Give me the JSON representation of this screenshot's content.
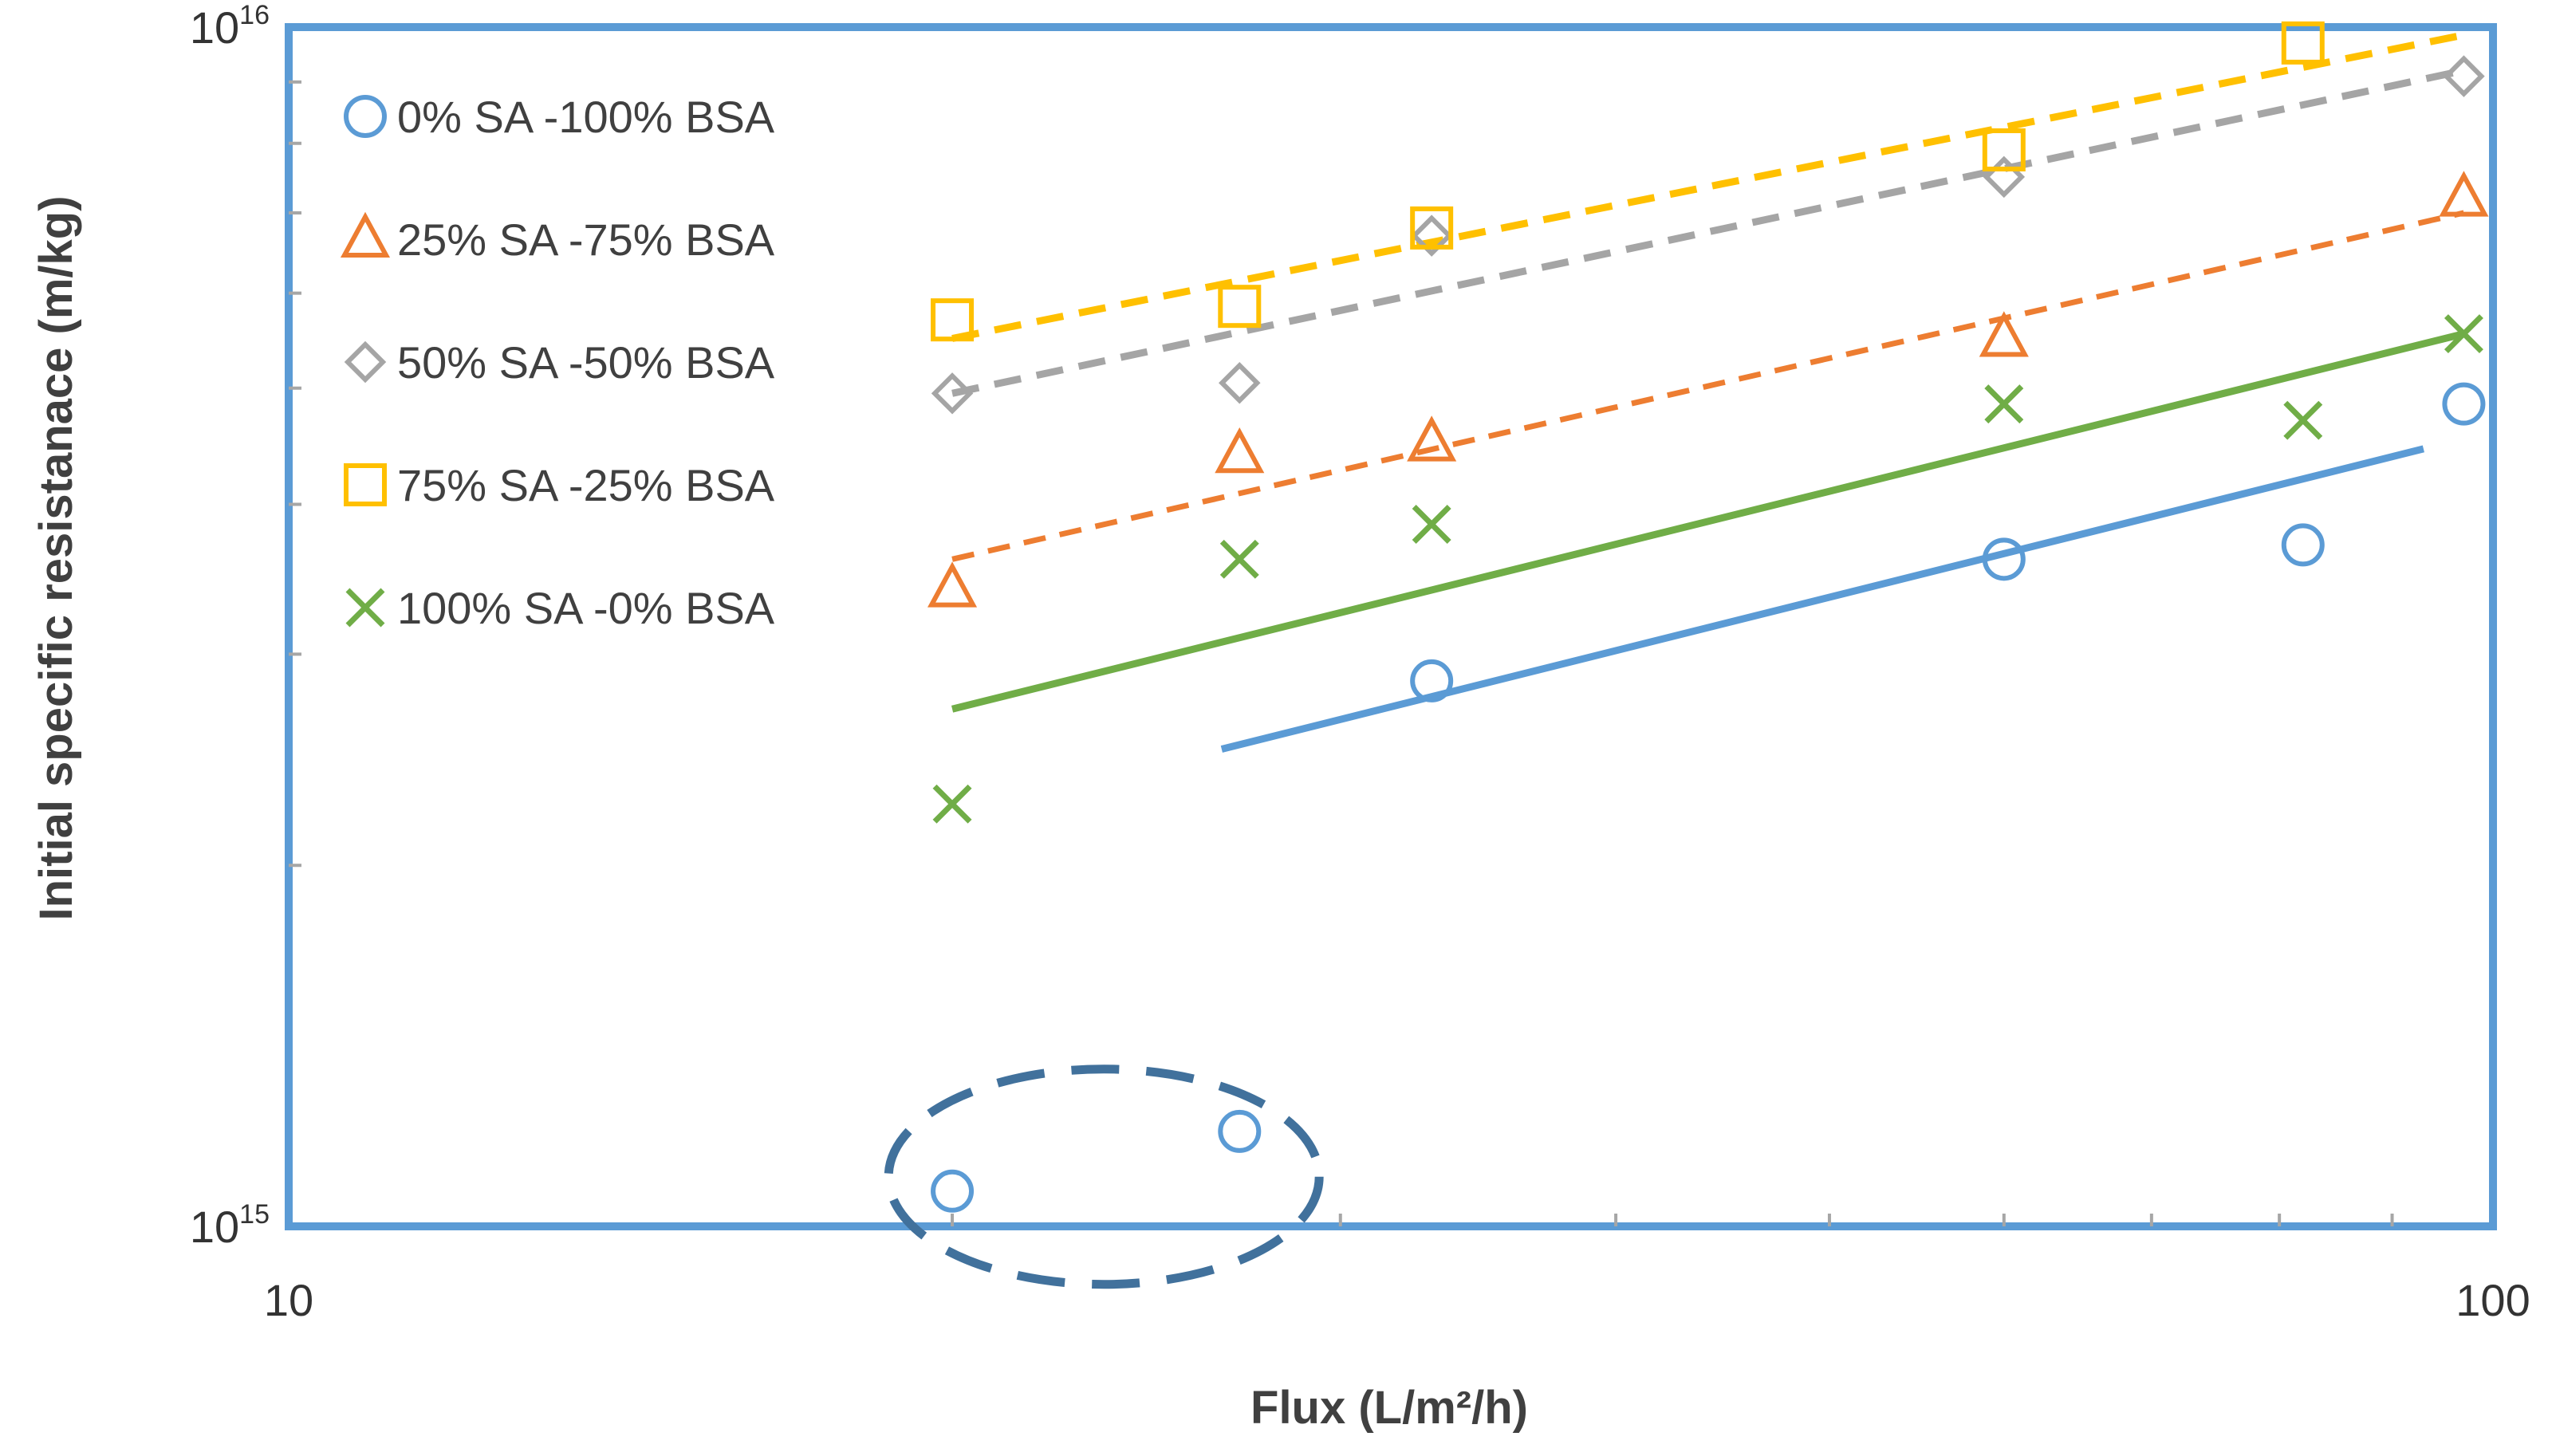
{
  "chart_data": {
    "type": "scatter",
    "xscale": "log",
    "yscale": "log",
    "xlim": [
      10,
      100
    ],
    "ylim": [
      1000000000000000.0,
      1e+16
    ],
    "xlabel": "Flux (L/m²/h)",
    "ylabel": "Initial specific resistanace (m/kg)",
    "x_ticks": [
      {
        "value": 10,
        "label": "10"
      },
      {
        "value": 100,
        "label": "100"
      }
    ],
    "y_ticks": [
      {
        "value": 1000000000000000.0,
        "base": "10",
        "exp": "15"
      },
      {
        "value": 1e+16,
        "base": "10",
        "exp": "16"
      }
    ],
    "grid": false,
    "legend_position": "top-left",
    "series": [
      {
        "name": "0% SA -100% BSA",
        "marker": "circle",
        "color": "#5B9BD5",
        "points": [
          [
            20,
            1070000000000000.0
          ],
          [
            27,
            1200000000000000.0
          ],
          [
            33,
            2850000000000000.0
          ],
          [
            60,
            3600000000000000.0
          ],
          [
            82,
            3700000000000000.0
          ],
          [
            97,
            4850000000000000.0
          ]
        ],
        "trend": {
          "x": [
            26.5,
            93
          ],
          "y": [
            2500000000000000.0,
            4450000000000000.0
          ],
          "style": "solid"
        }
      },
      {
        "name": "25% SA -75% BSA",
        "marker": "triangle",
        "color": "#ED7D31",
        "points": [
          [
            20,
            3400000000000000.0
          ],
          [
            27,
            4400000000000000.0
          ],
          [
            33,
            4500000000000000.0
          ],
          [
            60,
            5500000000000000.0
          ],
          [
            97,
            7200000000000000.0
          ]
        ],
        "trend": {
          "x": [
            20,
            97
          ],
          "y": [
            3600000000000000.0,
            7000000000000000.0
          ],
          "style": "dashed"
        }
      },
      {
        "name": "50% SA -50% BSA",
        "marker": "diamond",
        "color": "#A5A5A5",
        "points": [
          [
            20,
            4950000000000000.0
          ],
          [
            27,
            5050000000000000.0
          ],
          [
            33,
            6700000000000000.0
          ],
          [
            60,
            7500000000000000.0
          ],
          [
            97,
            9100000000000000.0
          ]
        ],
        "trend": {
          "x": [
            20,
            97
          ],
          "y": [
            4950000000000000.0,
            9200000000000000.0
          ],
          "style": "dashed"
        }
      },
      {
        "name": "75% SA -25% BSA",
        "marker": "square",
        "color": "#FFC000",
        "points": [
          [
            20,
            5700000000000000.0
          ],
          [
            27,
            5850000000000000.0
          ],
          [
            33,
            6800000000000000.0
          ],
          [
            60,
            7900000000000000.0
          ],
          [
            82,
            9700000000000000.0
          ]
        ],
        "trend": {
          "x": [
            20,
            97
          ],
          "y": [
            5500000000000000.0,
            9850000000000000.0
          ],
          "style": "dashed"
        }
      },
      {
        "name": "100% SA -0% BSA",
        "marker": "x",
        "color": "#70AD47",
        "points": [
          [
            20,
            2250000000000000.0
          ],
          [
            27,
            3600000000000000.0
          ],
          [
            33,
            3850000000000000.0
          ],
          [
            60,
            4850000000000000.0
          ],
          [
            82,
            4700000000000000.0
          ],
          [
            97,
            5550000000000000.0
          ]
        ],
        "trend": {
          "x": [
            20,
            97
          ],
          "y": [
            2700000000000000.0,
            5550000000000000.0
          ],
          "style": "solid"
        }
      }
    ],
    "annotations": [
      {
        "type": "dashed-ellipse",
        "color": "#41719C",
        "encloses": "0% SA -100% BSA points at x = 20 and x = 27"
      }
    ]
  }
}
